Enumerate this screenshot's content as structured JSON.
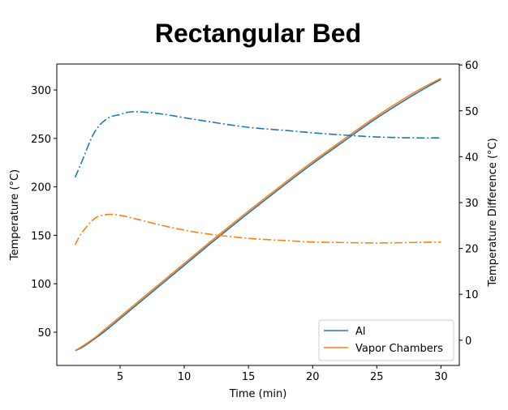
{
  "chart_data": {
    "type": "line",
    "title": "Rectangular Bed",
    "xlabel": "Time (min)",
    "ylabel": "Temperature (°C)",
    "ylabel_right": "Temperature Difference (°C)",
    "xlim": [
      0.07,
      31.43
    ],
    "ylim": [
      15.7,
      326.8
    ],
    "ylim_right": [
      -5.5,
      60.2
    ],
    "xticks": [
      5,
      10,
      15,
      20,
      25,
      30
    ],
    "yticks": [
      50,
      100,
      150,
      200,
      250,
      300
    ],
    "yticks_right": [
      0,
      10,
      20,
      30,
      40,
      50,
      60
    ],
    "grid": false,
    "legend_position": "lower-right",
    "x": [
      1.5,
      2,
      3,
      4,
      5,
      6,
      8,
      10,
      12,
      15,
      18,
      20,
      22,
      25,
      28,
      30
    ],
    "series": [
      {
        "name": "Al",
        "axis": "left",
        "style": "solid",
        "color": "#1f77b4",
        "values": [
          31,
          34,
          43,
          53,
          64,
          75,
          97,
          119,
          141,
          173,
          204,
          224,
          243,
          271,
          296,
          311
        ]
      },
      {
        "name": "Vapor Chambers",
        "axis": "left",
        "style": "solid",
        "color": "#ff7f0e",
        "values": [
          31,
          35,
          44,
          55,
          66,
          77,
          99,
          121,
          143,
          175,
          206,
          226,
          245,
          273,
          298,
          312
        ]
      },
      {
        "axis": "right",
        "style": "dashdot",
        "color": "#1f77b4",
        "values": [
          35.5,
          38.8,
          45.3,
          48.3,
          49.2,
          49.8,
          49.4,
          48.5,
          47.6,
          46.4,
          45.7,
          45.2,
          44.8,
          44.3,
          44.1,
          44.1
        ]
      },
      {
        "axis": "right",
        "style": "dashdot",
        "color": "#ff7f0e",
        "values": [
          20.8,
          23.3,
          26.5,
          27.4,
          27.2,
          26.6,
          25.2,
          24.0,
          23.1,
          22.2,
          21.7,
          21.4,
          21.3,
          21.2,
          21.3,
          21.4
        ]
      }
    ]
  }
}
